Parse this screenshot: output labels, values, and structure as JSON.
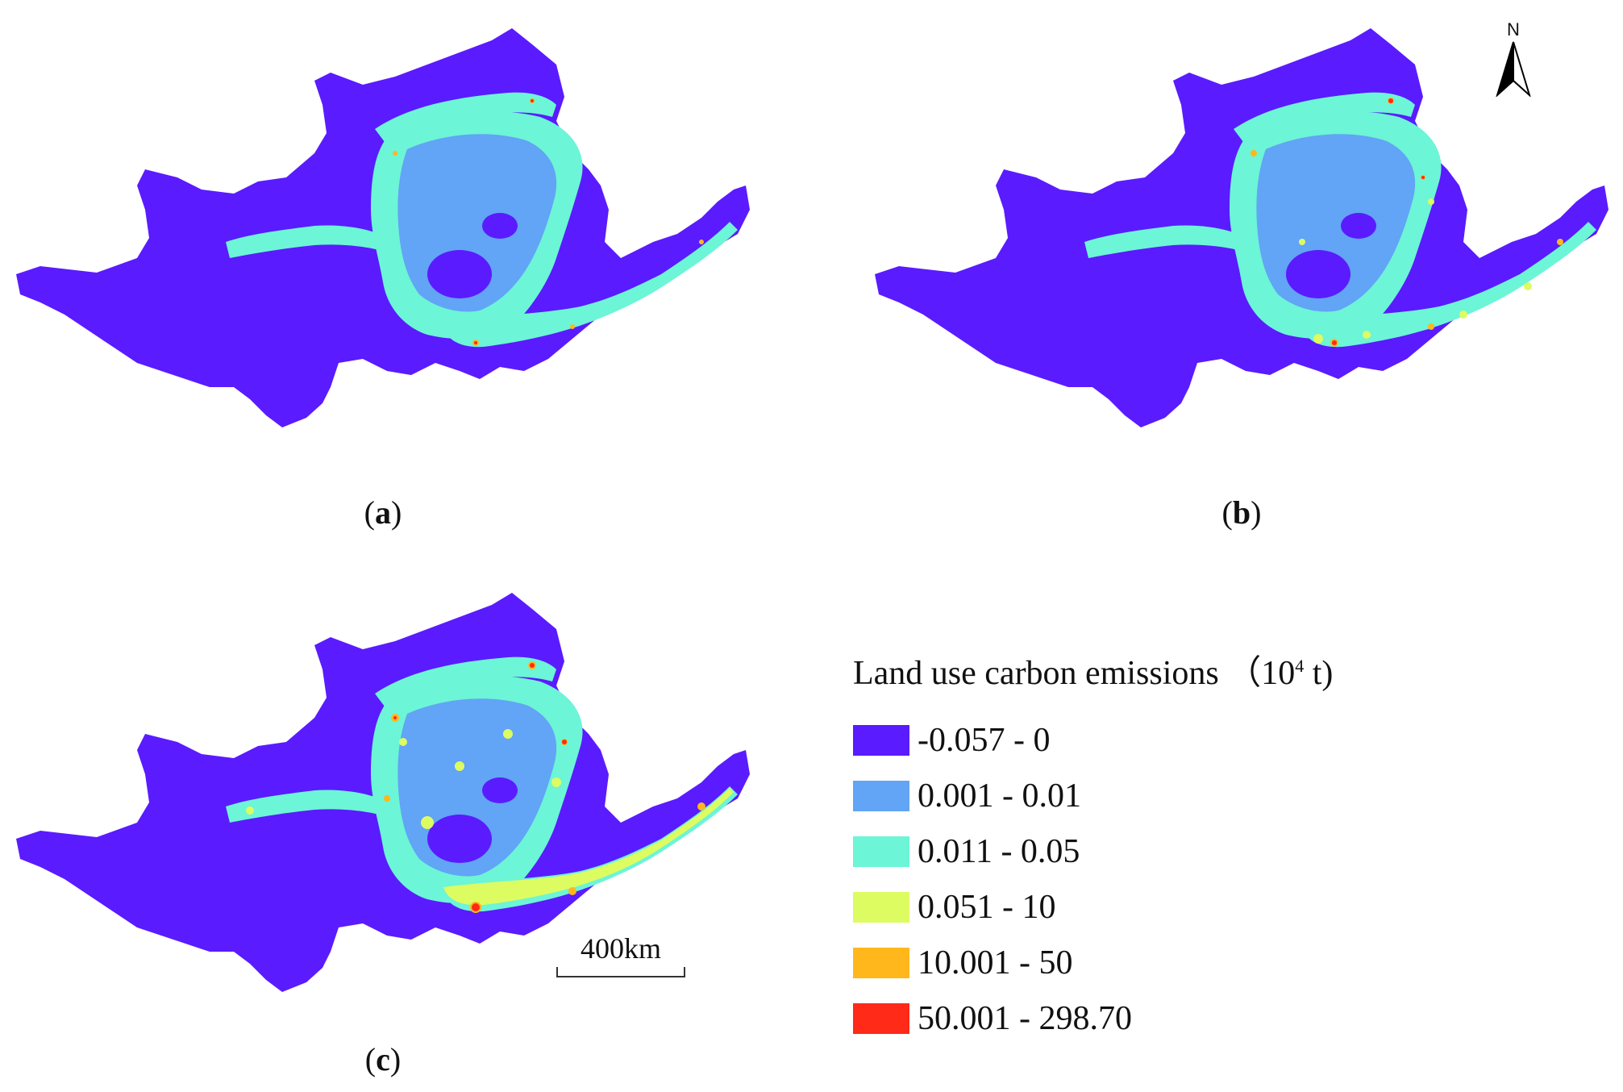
{
  "panels": [
    {
      "label": "a"
    },
    {
      "label": "b"
    },
    {
      "label": "c"
    }
  ],
  "legend": {
    "title": "Land use carbon emissions",
    "unit_base": "（10",
    "unit_exp": "4",
    "unit_tail": " t)",
    "classes": [
      {
        "label": "-0.057 - 0",
        "color": "#5a1bff"
      },
      {
        "label": "0.001 - 0.01",
        "color": "#62a4f5"
      },
      {
        "label": "0.011 - 0.05",
        "color": "#6cf5d6"
      },
      {
        "label": "0.051 - 10",
        "color": "#ddfc62"
      },
      {
        "label": "10.001 - 50",
        "color": "#ffb71c"
      },
      {
        "label": "50.001 - 298.70",
        "color": "#ff2a18"
      }
    ]
  },
  "north_arrow": {
    "label": "N"
  },
  "scale_bar": {
    "label": "400km"
  }
}
